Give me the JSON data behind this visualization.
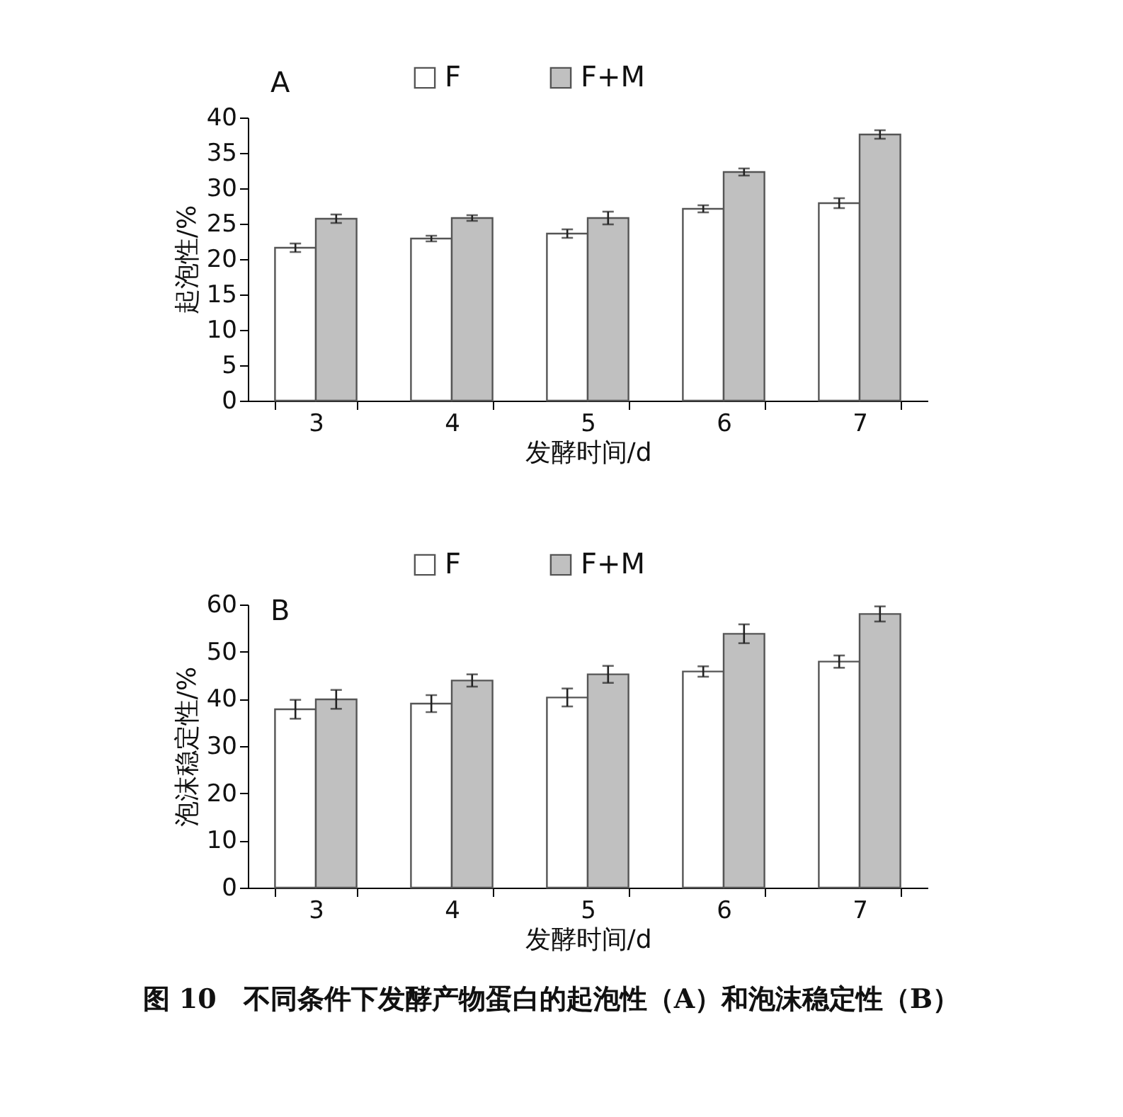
{
  "chart_data": [
    {
      "type": "bar",
      "title": "A",
      "xlabel": "发酵时间/d",
      "ylabel": "起泡性/%",
      "categories": [
        "3",
        "4",
        "5",
        "6",
        "7"
      ],
      "ylim": [
        0,
        40
      ],
      "yticks": [
        0,
        5,
        10,
        15,
        20,
        25,
        30,
        35,
        40
      ],
      "legend": "top",
      "grid": false,
      "series": [
        {
          "name": "F",
          "color": "#ffffff",
          "values": [
            21.6,
            22.9,
            23.6,
            27.1,
            27.9
          ],
          "errors": [
            0.6,
            0.4,
            0.6,
            0.5,
            0.7
          ]
        },
        {
          "name": "F+M",
          "color": "#c0c0c0",
          "values": [
            25.7,
            25.8,
            25.8,
            32.3,
            37.6
          ],
          "errors": [
            0.6,
            0.4,
            0.9,
            0.5,
            0.6
          ]
        }
      ]
    },
    {
      "type": "bar",
      "title": "B",
      "xlabel": "发酵时间/d",
      "ylabel": "泡沫稳定性/%",
      "categories": [
        "3",
        "4",
        "5",
        "6",
        "7"
      ],
      "ylim": [
        0,
        60
      ],
      "yticks": [
        0,
        10,
        20,
        30,
        40,
        50,
        60
      ],
      "legend": "top",
      "grid": false,
      "annotations": [
        "图 10　不同条件下发酵产物蛋白的起泡性（A）和泡沫稳定性（B）"
      ],
      "series": [
        {
          "name": "F",
          "color": "#ffffff",
          "values": [
            37.8,
            39.0,
            40.3,
            45.8,
            47.9
          ],
          "errors": [
            2.0,
            1.8,
            1.9,
            1.1,
            1.3
          ]
        },
        {
          "name": "F+M",
          "color": "#c0c0c0",
          "values": [
            39.9,
            43.9,
            45.2,
            53.8,
            58.0
          ],
          "errors": [
            2.0,
            1.3,
            1.8,
            2.0,
            1.6
          ]
        }
      ]
    }
  ]
}
